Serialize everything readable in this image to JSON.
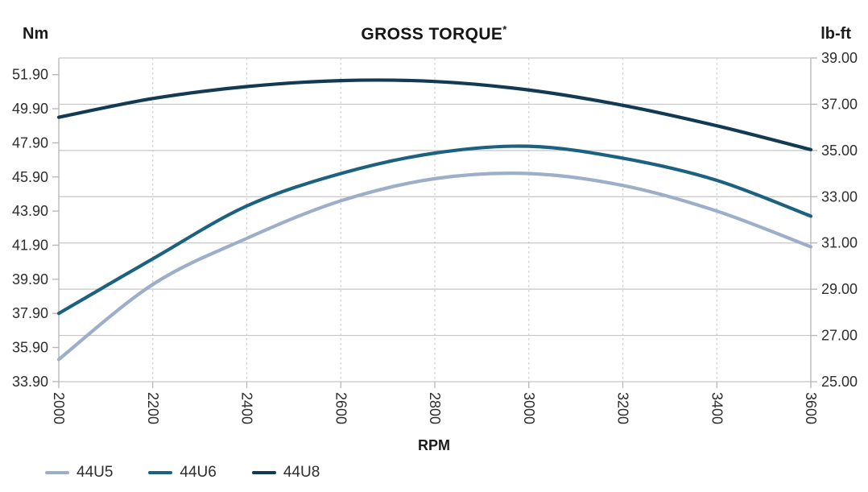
{
  "colors": {
    "grid": "#c6c6c6",
    "grid_dashed": "#cfcfcf",
    "axis": "#b5b5b5",
    "tick": "#b5b5b5",
    "text": "#2d2d2d",
    "title": "#151515"
  },
  "chart_data": {
    "type": "line",
    "title": "GROSS TORQUE",
    "title_mark": "*",
    "xlabel": "RPM",
    "ylabel_left": "Nm",
    "ylabel_right": "lb-ft",
    "x_ticks": [
      "2000",
      "2200",
      "2400",
      "2600",
      "2800",
      "3000",
      "3200",
      "3400",
      "3600"
    ],
    "y_ticks_left_nm": [
      "51.90",
      "49.90",
      "47.90",
      "45.90",
      "43.90",
      "41.90",
      "39.90",
      "37.90",
      "35.90",
      "33.90"
    ],
    "y_ticks_right_lbft": [
      "39.00",
      "37.00",
      "35.00",
      "33.00",
      "31.00",
      "29.00",
      "27.00",
      "25.00"
    ],
    "x_range_rpm": [
      2000,
      3600
    ],
    "y_range_lbft": [
      25.0,
      39.0
    ],
    "nm_to_lbft": 0.7375621,
    "x": [
      2000,
      2200,
      2400,
      2600,
      2800,
      3000,
      3200,
      3400,
      3600
    ],
    "series": [
      {
        "name": "44U5",
        "color": "#9DAEC9",
        "values_nm": [
          35.2,
          39.6,
          42.3,
          44.5,
          45.8,
          46.1,
          45.4,
          43.9,
          41.8
        ]
      },
      {
        "name": "44U6",
        "color": "#1D6181",
        "values_nm": [
          37.9,
          41.1,
          44.2,
          46.1,
          47.3,
          47.7,
          47.0,
          45.7,
          43.6
        ]
      },
      {
        "name": "44U8",
        "color": "#123A53",
        "values_nm": [
          49.4,
          50.5,
          51.2,
          51.55,
          51.5,
          51.0,
          50.1,
          48.9,
          47.5
        ]
      }
    ],
    "legend": [
      "44U5",
      "44U6",
      "44U8"
    ],
    "grid": "horizontal solid at lb-ft ticks, vertical dashed at RPM ticks",
    "legend_position": "bottom-left"
  }
}
